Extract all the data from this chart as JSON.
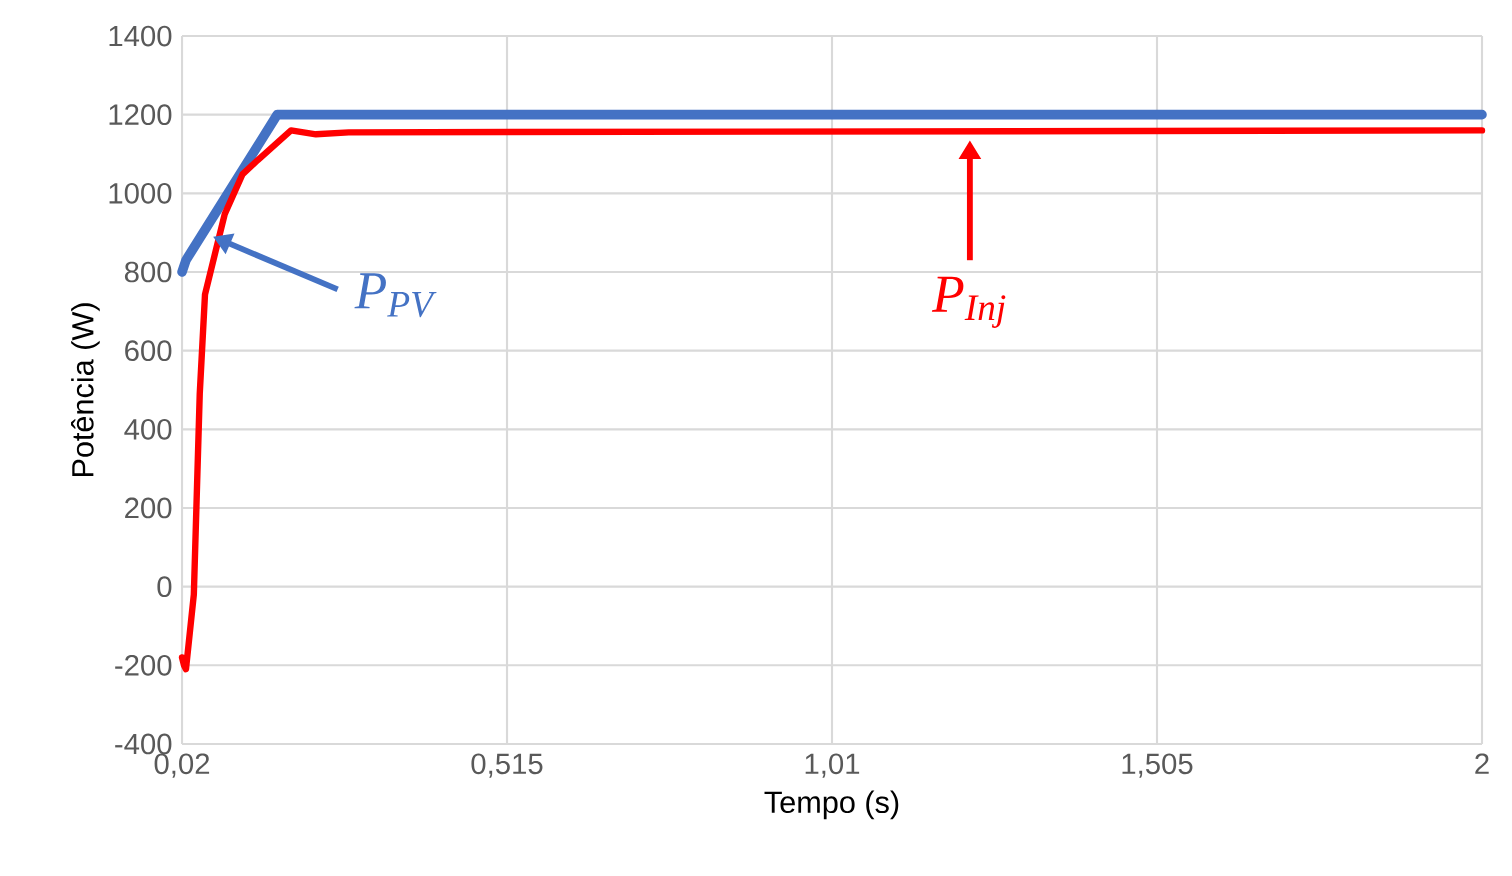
{
  "chart_data": {
    "type": "line",
    "xlabel": "Tempo (s)",
    "ylabel": "Potência (W)",
    "xlim": [
      0.02,
      2.0
    ],
    "ylim": [
      -400,
      1400
    ],
    "xticks": [
      {
        "value": 0.02,
        "label": "0,02"
      },
      {
        "value": 0.515,
        "label": "0,515"
      },
      {
        "value": 1.01,
        "label": "1,01"
      },
      {
        "value": 1.505,
        "label": "1,505"
      },
      {
        "value": 2.0,
        "label": "2"
      }
    ],
    "yticks": [
      -400,
      -200,
      0,
      200,
      400,
      600,
      800,
      1000,
      1200,
      1400
    ],
    "grid": true,
    "series": [
      {
        "color": "#4472c4",
        "x": [
          0.02,
          0.026,
          0.165,
          2.0
        ],
        "values": [
          800,
          830,
          1200,
          1200
        ]
      },
      {
        "color": "#ff0000",
        "x": [
          0.02,
          0.023,
          0.026,
          0.038,
          0.047,
          0.055,
          0.07,
          0.085,
          0.112,
          0.135,
          0.186,
          0.224,
          0.274,
          2.0
        ],
        "values": [
          -180,
          -200,
          -210,
          -20,
          490,
          743,
          845,
          947,
          1048,
          1084,
          1160,
          1150,
          1155,
          1160
        ]
      }
    ],
    "annotations": [
      {
        "text": "P$_{PV}$",
        "x": 0.067,
        "y": 890
      },
      {
        "text": "P$_{Inj}$",
        "x": 1.22,
        "y": 1135
      }
    ]
  }
}
